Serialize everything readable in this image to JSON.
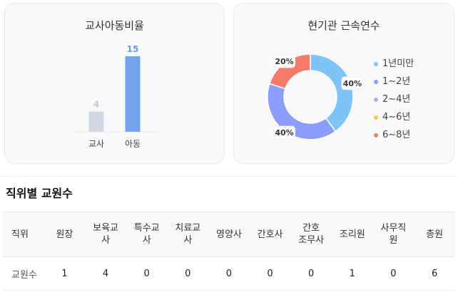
{
  "ratio_card": {
    "title": "교사아동비율",
    "chart_data": {
      "type": "bar",
      "categories": [
        "교사",
        "아동"
      ],
      "values": [
        4,
        15
      ],
      "ylim": [
        0,
        15
      ],
      "colors": [
        "#d3d7e3",
        "#72a3eb"
      ]
    }
  },
  "tenure_card": {
    "title": "현기관 근속연수",
    "chart_data": {
      "type": "pie",
      "categories": [
        "1년미만",
        "1~2년",
        "2~4년",
        "4~6년",
        "6~8년"
      ],
      "values": [
        40,
        40,
        0,
        0,
        20
      ],
      "labels": [
        "40%",
        "40%",
        "",
        "",
        "20%"
      ],
      "colors": [
        "#7fc4f8",
        "#8c9cf9",
        "#c7a3f0",
        "#f7c84a",
        "#f6796a"
      ],
      "legend": "right"
    }
  },
  "staff_section": {
    "title": "직위별 교원수",
    "header_first": "직위",
    "headers": [
      [
        "원장"
      ],
      [
        "보육교",
        "사"
      ],
      [
        "특수교",
        "사"
      ],
      [
        "치료교",
        "사"
      ],
      [
        "영양사"
      ],
      [
        "간호사"
      ],
      [
        "간호",
        "조무사"
      ],
      [
        "조리원"
      ],
      [
        "사무직",
        "원"
      ],
      [
        "총원"
      ]
    ],
    "row_label": "교원수",
    "values": [
      "1",
      "4",
      "0",
      "0",
      "0",
      "0",
      "0",
      "1",
      "0",
      "6"
    ]
  }
}
